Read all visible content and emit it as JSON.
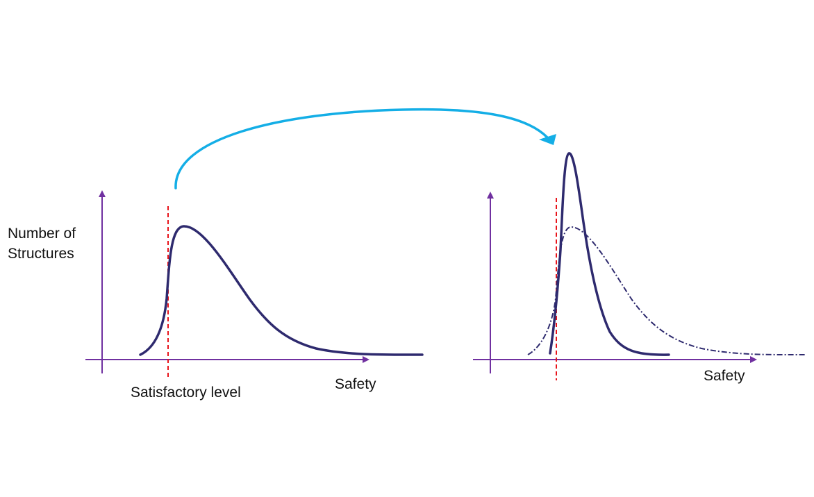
{
  "labels": {
    "y_axis_line1": "Number of",
    "y_axis_line2": "Structures",
    "satisfactory_level": "Satisfactory level",
    "x_axis_left": "Safety",
    "x_axis_right": "Safety"
  },
  "colors": {
    "axis": "#7030a0",
    "curve": "#2e2a6e",
    "threshold": "#e8141b",
    "transition_arrow": "#14aee6",
    "text": "#111111"
  }
}
